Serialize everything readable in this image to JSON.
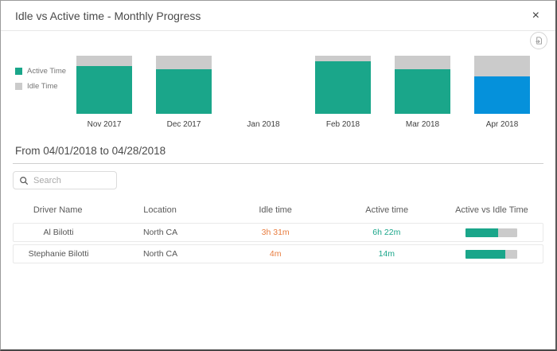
{
  "dialog": {
    "title": "Idle vs Active time - Monthly Progress",
    "close_label": "×"
  },
  "chart_data": {
    "type": "bar",
    "stacked": true,
    "axes": "hidden",
    "legend_position": "left",
    "categories": [
      "Nov 2017",
      "Dec 2017",
      "Jan 2018",
      "Feb 2018",
      "Mar 2018",
      "Apr 2018"
    ],
    "series": [
      {
        "name": "Active Time",
        "color": "#1aa68a",
        "values": [
          82,
          77,
          0,
          91,
          77,
          64
        ]
      },
      {
        "name": "Idle Time",
        "color": "#cbcbcb",
        "values": [
          18,
          23,
          0,
          9,
          23,
          36
        ]
      }
    ],
    "unit": "percent of monthly total (bar height %)",
    "highlight": {
      "category": "Apr 2018",
      "series": "Active Time",
      "color": "#0591db"
    }
  },
  "period": {
    "label": "From 04/01/2018 to 04/28/2018"
  },
  "search": {
    "placeholder": "Search",
    "value": ""
  },
  "table": {
    "columns": [
      "Driver Name",
      "Location",
      "Idle time",
      "Active time",
      "Active vs Idle Time"
    ],
    "rows": [
      {
        "driver": "Al Bilotti",
        "location": "North CA",
        "idle_time": "3h 31m",
        "active_time": "6h 22m",
        "active_pct": 64
      },
      {
        "driver": "Stephanie Bilotti",
        "location": "North CA",
        "idle_time": "4m",
        "active_time": "14m",
        "active_pct": 78
      }
    ]
  },
  "colors": {
    "active": "#1aa68a",
    "idle": "#cbcbcb",
    "highlight": "#0591db",
    "idle_text": "#e87c3e",
    "active_text": "#1aa68a"
  }
}
